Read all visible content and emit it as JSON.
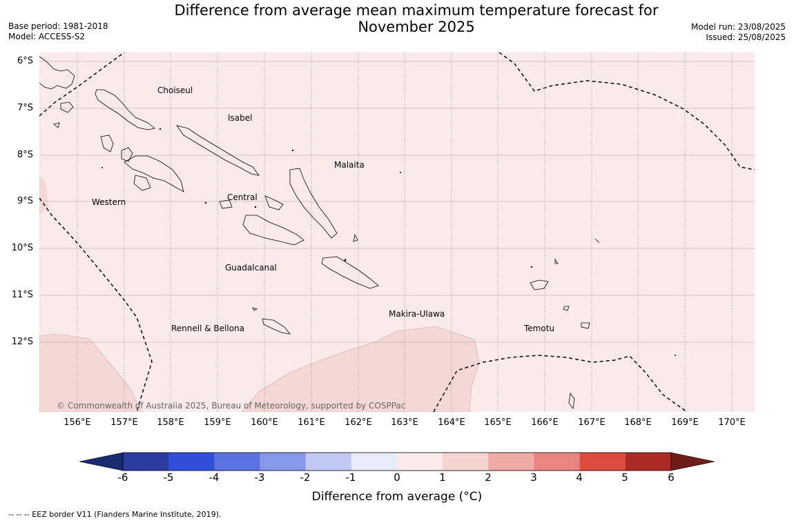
{
  "title_line1": "Difference from average mean maximum temperature forecast for",
  "title_line2": "November 2025",
  "base_period": "Base period: 1981-2018",
  "model": "Model: ACCESS-S2",
  "model_run": "Model run: 23/08/2025",
  "issued": "Issued: 25/08/2025",
  "lat_labels": [
    "6°S",
    "7°S",
    "8°S",
    "9°S",
    "10°S",
    "11°S",
    "12°S"
  ],
  "lon_labels": [
    "156°E",
    "157°E",
    "158°E",
    "159°E",
    "160°E",
    "161°E",
    "162°E",
    "163°E",
    "164°E",
    "165°E",
    "166°E",
    "167°E",
    "168°E",
    "169°E",
    "170°E"
  ],
  "places": {
    "choiseul": "Choiseul",
    "isabel": "Isabel",
    "malaita": "Malaita",
    "western": "Western",
    "central": "Central",
    "guadalcanal": "Guadalcanal",
    "makira": "Makira-Ulawa",
    "rennell": "Rennell & Bellona",
    "temotu": "Temotu"
  },
  "copyright": "© Commonwealth of Australia 2025, Bureau of Meteorology, supported by COSPPac",
  "colorbar": {
    "ticks": [
      "-6",
      "-5",
      "-4",
      "-3",
      "-2",
      "-1",
      "0",
      "1",
      "2",
      "3",
      "4",
      "5",
      "6"
    ],
    "colors": [
      "#2a3c9e",
      "#2f4fdb",
      "#5a73e0",
      "#8598ea",
      "#c0c8f3",
      "#e8ecfa",
      "#fbeaea",
      "#f4d3d1",
      "#eeaaa5",
      "#e8857e",
      "#dd4b3f",
      "#ac2a24"
    ],
    "low_extend_color": "#1a2a6e",
    "high_extend_color": "#6e1d18",
    "label": "Difference from average (°C)"
  },
  "map_fill": {
    "class_0_1": "#fbeaea",
    "class_1_2": "#f4d8d6"
  },
  "footer": "--  --  -- EEZ border V11 (Flanders Marine Institute, 2019)."
}
